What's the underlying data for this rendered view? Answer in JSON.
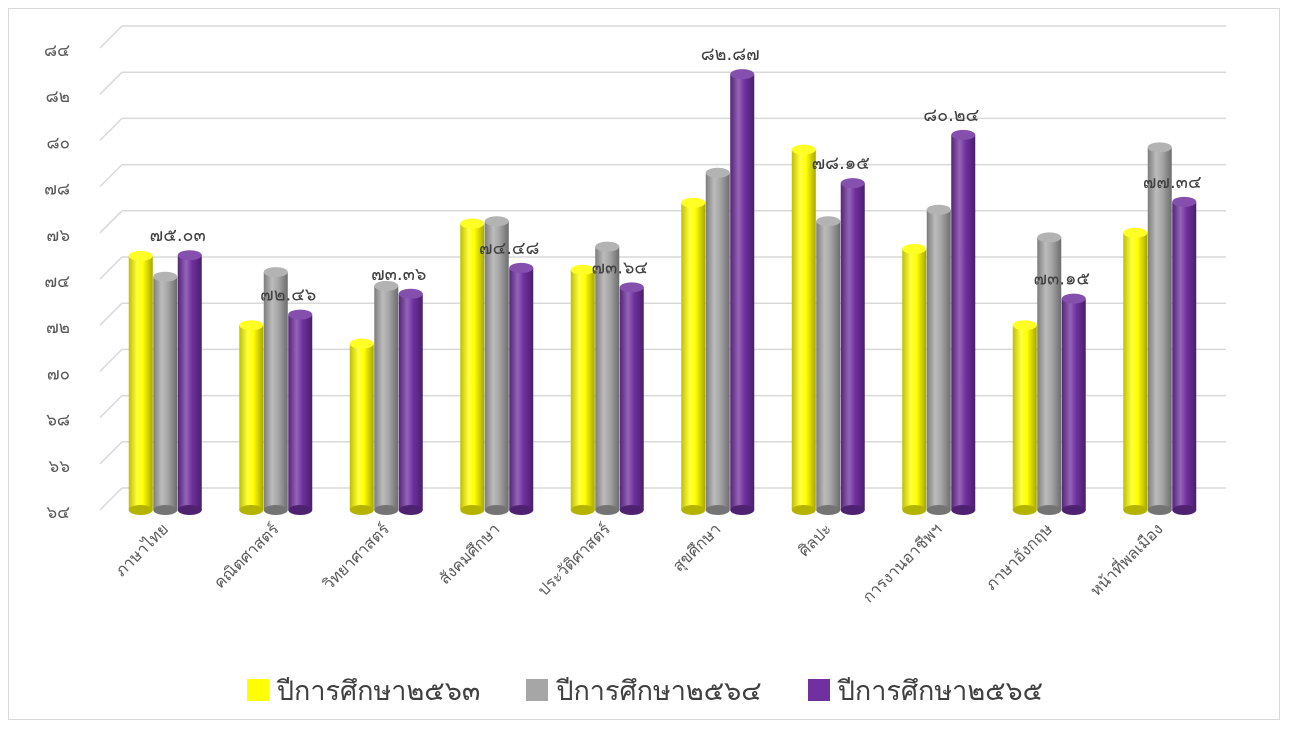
{
  "chart_data": {
    "type": "bar",
    "title": "",
    "xlabel": "",
    "ylabel": "",
    "ylim": [
      64,
      84
    ],
    "y_ticks": [
      64,
      66,
      68,
      70,
      72,
      74,
      76,
      78,
      80,
      82,
      84
    ],
    "y_tick_labels": [
      "๖๔",
      "๖๖",
      "๖๘",
      "๗๐",
      "๗๒",
      "๗๔",
      "๗๖",
      "๗๘",
      "๘๐",
      "๘๒",
      "๘๔"
    ],
    "grid": true,
    "style": "3d-cylinder",
    "legend_position": "bottom",
    "categories": [
      "ภาษาไทย",
      "คณิตศาสตร์",
      "วิทยาศาสตร์",
      "สังคมศึกษา",
      "ประวัติศาสตร์",
      "สุขศึกษา",
      "ศิลปะ",
      "การงานอาชีพฯ",
      "ภาษาอังกฤษ",
      "หน้าที่พลเมือง"
    ],
    "series": [
      {
        "name": "ปีการศึกษา๒๕๖๓",
        "color": "#ffff00",
        "values": [
          75.0,
          72.0,
          71.2,
          76.4,
          74.4,
          77.3,
          79.6,
          75.3,
          72.0,
          76.0
        ]
      },
      {
        "name": "ปีการศึกษา๒๕๖๔",
        "color": "#a6a6a6",
        "values": [
          74.1,
          74.3,
          73.7,
          76.5,
          75.4,
          78.6,
          76.5,
          77.0,
          75.8,
          79.7
        ]
      },
      {
        "name": "ปีการศึกษา๒๕๖๕",
        "color": "#7030a0",
        "values": [
          75.03,
          72.46,
          73.36,
          74.48,
          73.64,
          82.87,
          78.15,
          80.24,
          73.15,
          77.34
        ]
      }
    ],
    "data_labels": [
      "๗๕.๐๓",
      "๗๒.๔๖",
      "๗๓.๓๖",
      "๗๔.๔๘",
      "๗๓.๖๔",
      "๘๒.๘๗",
      "๗๘.๑๕",
      "๘๐.๒๔",
      "๗๓.๑๕",
      "๗๗.๓๔"
    ]
  }
}
